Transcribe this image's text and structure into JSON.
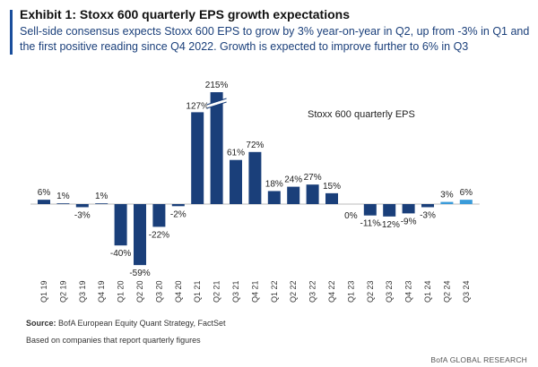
{
  "header": {
    "title": "Exhibit 1: Stoxx 600 quarterly EPS growth expectations",
    "subtitle": "Sell-side consensus expects Stoxx 600 EPS to grow by 3% year-on-year in Q2, up from -3% in Q1 and the first positive reading since Q4 2022. Growth is expected to improve further to 6% in Q3"
  },
  "chart_data": {
    "type": "bar",
    "title": "Stoxx 600 quarterly EPS",
    "unit": "%",
    "categories": [
      "Q1 19",
      "Q2 19",
      "Q3 19",
      "Q4 19",
      "Q1 20",
      "Q2 20",
      "Q3 20",
      "Q4 20",
      "Q1 21",
      "Q2 21",
      "Q3 21",
      "Q4 21",
      "Q1 22",
      "Q2 22",
      "Q3 22",
      "Q4 22",
      "Q1 23",
      "Q2 23",
      "Q3 23",
      "Q4 23",
      "Q1 24",
      "Q2 24",
      "Q3 24"
    ],
    "values": [
      6,
      1,
      -3,
      1,
      -40,
      -59,
      -22,
      -2,
      127,
      215,
      61,
      72,
      18,
      24,
      27,
      15,
      0,
      -11,
      -12,
      -9,
      -3,
      3,
      6
    ],
    "labels": [
      "6%",
      "1%",
      "-3%",
      "1%",
      "-40%",
      "-59%",
      "-22%",
      "-2%",
      "127%",
      "215%",
      "61%",
      "72%",
      "18%",
      "24%",
      "27%",
      "15%",
      "0%",
      "-11%",
      "-12%",
      "-9%",
      "-3%",
      "3%",
      "6%"
    ],
    "forecast_from_index": 21,
    "axis_break_on": "Q2 21",
    "colors": {
      "actual": "#1a3f7a",
      "forecast": "#3a9bd9"
    }
  },
  "footer": {
    "source_label": "Source:",
    "source_text": " BofA European Equity Quant Strategy, FactSet",
    "note": "Based on companies that report quarterly figures",
    "brand": "BofA GLOBAL RESEARCH"
  }
}
